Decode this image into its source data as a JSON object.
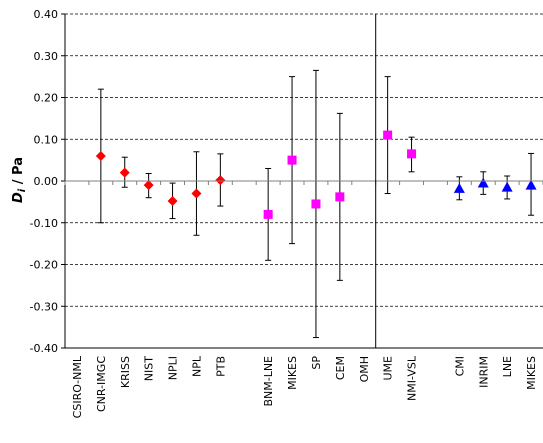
{
  "chart_data": {
    "type": "scatter",
    "title": "",
    "ylabel": "D_i / Pa",
    "ylabel_parts": {
      "main": "D",
      "sub": "i",
      "rest": " / Pa"
    },
    "ylim": [
      -0.4,
      0.4
    ],
    "yticks": [
      -0.4,
      -0.3,
      -0.2,
      -0.1,
      0.0,
      0.1,
      0.2,
      0.3,
      0.4
    ],
    "ytick_labels": [
      "-0.40",
      "-0.30",
      "-0.20",
      "-0.10",
      "0.00",
      "0.10",
      "0.20",
      "0.30",
      "0.40"
    ],
    "grid": "horizontal dashed",
    "colors": {
      "red": "#ff0000",
      "magenta": "#ff00ff",
      "blue": "#0000ff",
      "axis": "#000000",
      "grid": "#000000"
    },
    "categories": [
      "CSIRO-NML",
      "CNR-IMGC",
      "KRISS",
      "NIST",
      "NPLI",
      "NPL",
      "PTB",
      "",
      "BNM-LNE",
      "MIKES",
      "SP",
      "CEM",
      "OMH",
      "UME",
      "NMI-VSL",
      "",
      "CMI",
      "INRIM",
      "LNE",
      "MIKES"
    ],
    "divider_after_category": "OMH",
    "points": [
      {
        "label": "CNR-IMGC",
        "y": 0.06,
        "low": -0.1,
        "high": 0.22,
        "marker": "diamond",
        "color": "#ff0000"
      },
      {
        "label": "KRISS",
        "y": 0.02,
        "low": -0.015,
        "high": 0.057,
        "marker": "diamond",
        "color": "#ff0000"
      },
      {
        "label": "NIST",
        "y": -0.01,
        "low": -0.04,
        "high": 0.018,
        "marker": "diamond",
        "color": "#ff0000"
      },
      {
        "label": "NPLI",
        "y": -0.048,
        "low": -0.09,
        "high": -0.005,
        "marker": "diamond",
        "color": "#ff0000"
      },
      {
        "label": "NPL",
        "y": -0.03,
        "low": -0.13,
        "high": 0.07,
        "marker": "diamond",
        "color": "#ff0000"
      },
      {
        "label": "PTB",
        "y": 0.002,
        "low": -0.06,
        "high": 0.065,
        "marker": "diamond",
        "color": "#ff0000"
      },
      {
        "label": "BNM-LNE",
        "y": -0.08,
        "low": -0.19,
        "high": 0.03,
        "marker": "square",
        "color": "#ff00ff"
      },
      {
        "label": "MIKES",
        "y": 0.05,
        "low": -0.15,
        "high": 0.25,
        "marker": "square",
        "color": "#ff00ff"
      },
      {
        "label": "SP",
        "y": -0.055,
        "low": -0.375,
        "high": 0.265,
        "marker": "square",
        "color": "#ff00ff"
      },
      {
        "label": "CEM",
        "y": -0.038,
        "low": -0.238,
        "high": 0.162,
        "marker": "square",
        "color": "#ff00ff"
      },
      {
        "label": "UME",
        "y": 0.11,
        "low": -0.03,
        "high": 0.25,
        "marker": "square",
        "color": "#ff00ff"
      },
      {
        "label": "NMI-VSL",
        "y": 0.065,
        "low": 0.022,
        "high": 0.105,
        "marker": "square",
        "color": "#ff00ff"
      },
      {
        "label": "CMI",
        "y": -0.018,
        "low": -0.045,
        "high": 0.01,
        "marker": "triangle",
        "color": "#0000ff"
      },
      {
        "label": "INRIM",
        "y": -0.005,
        "low": -0.032,
        "high": 0.022,
        "marker": "triangle",
        "color": "#0000ff"
      },
      {
        "label": "LNE",
        "y": -0.015,
        "low": -0.043,
        "high": 0.012,
        "marker": "triangle",
        "color": "#0000ff"
      },
      {
        "label": "MIKES",
        "y": -0.01,
        "low": -0.082,
        "high": 0.066,
        "marker": "triangle",
        "color": "#0000ff"
      }
    ]
  }
}
